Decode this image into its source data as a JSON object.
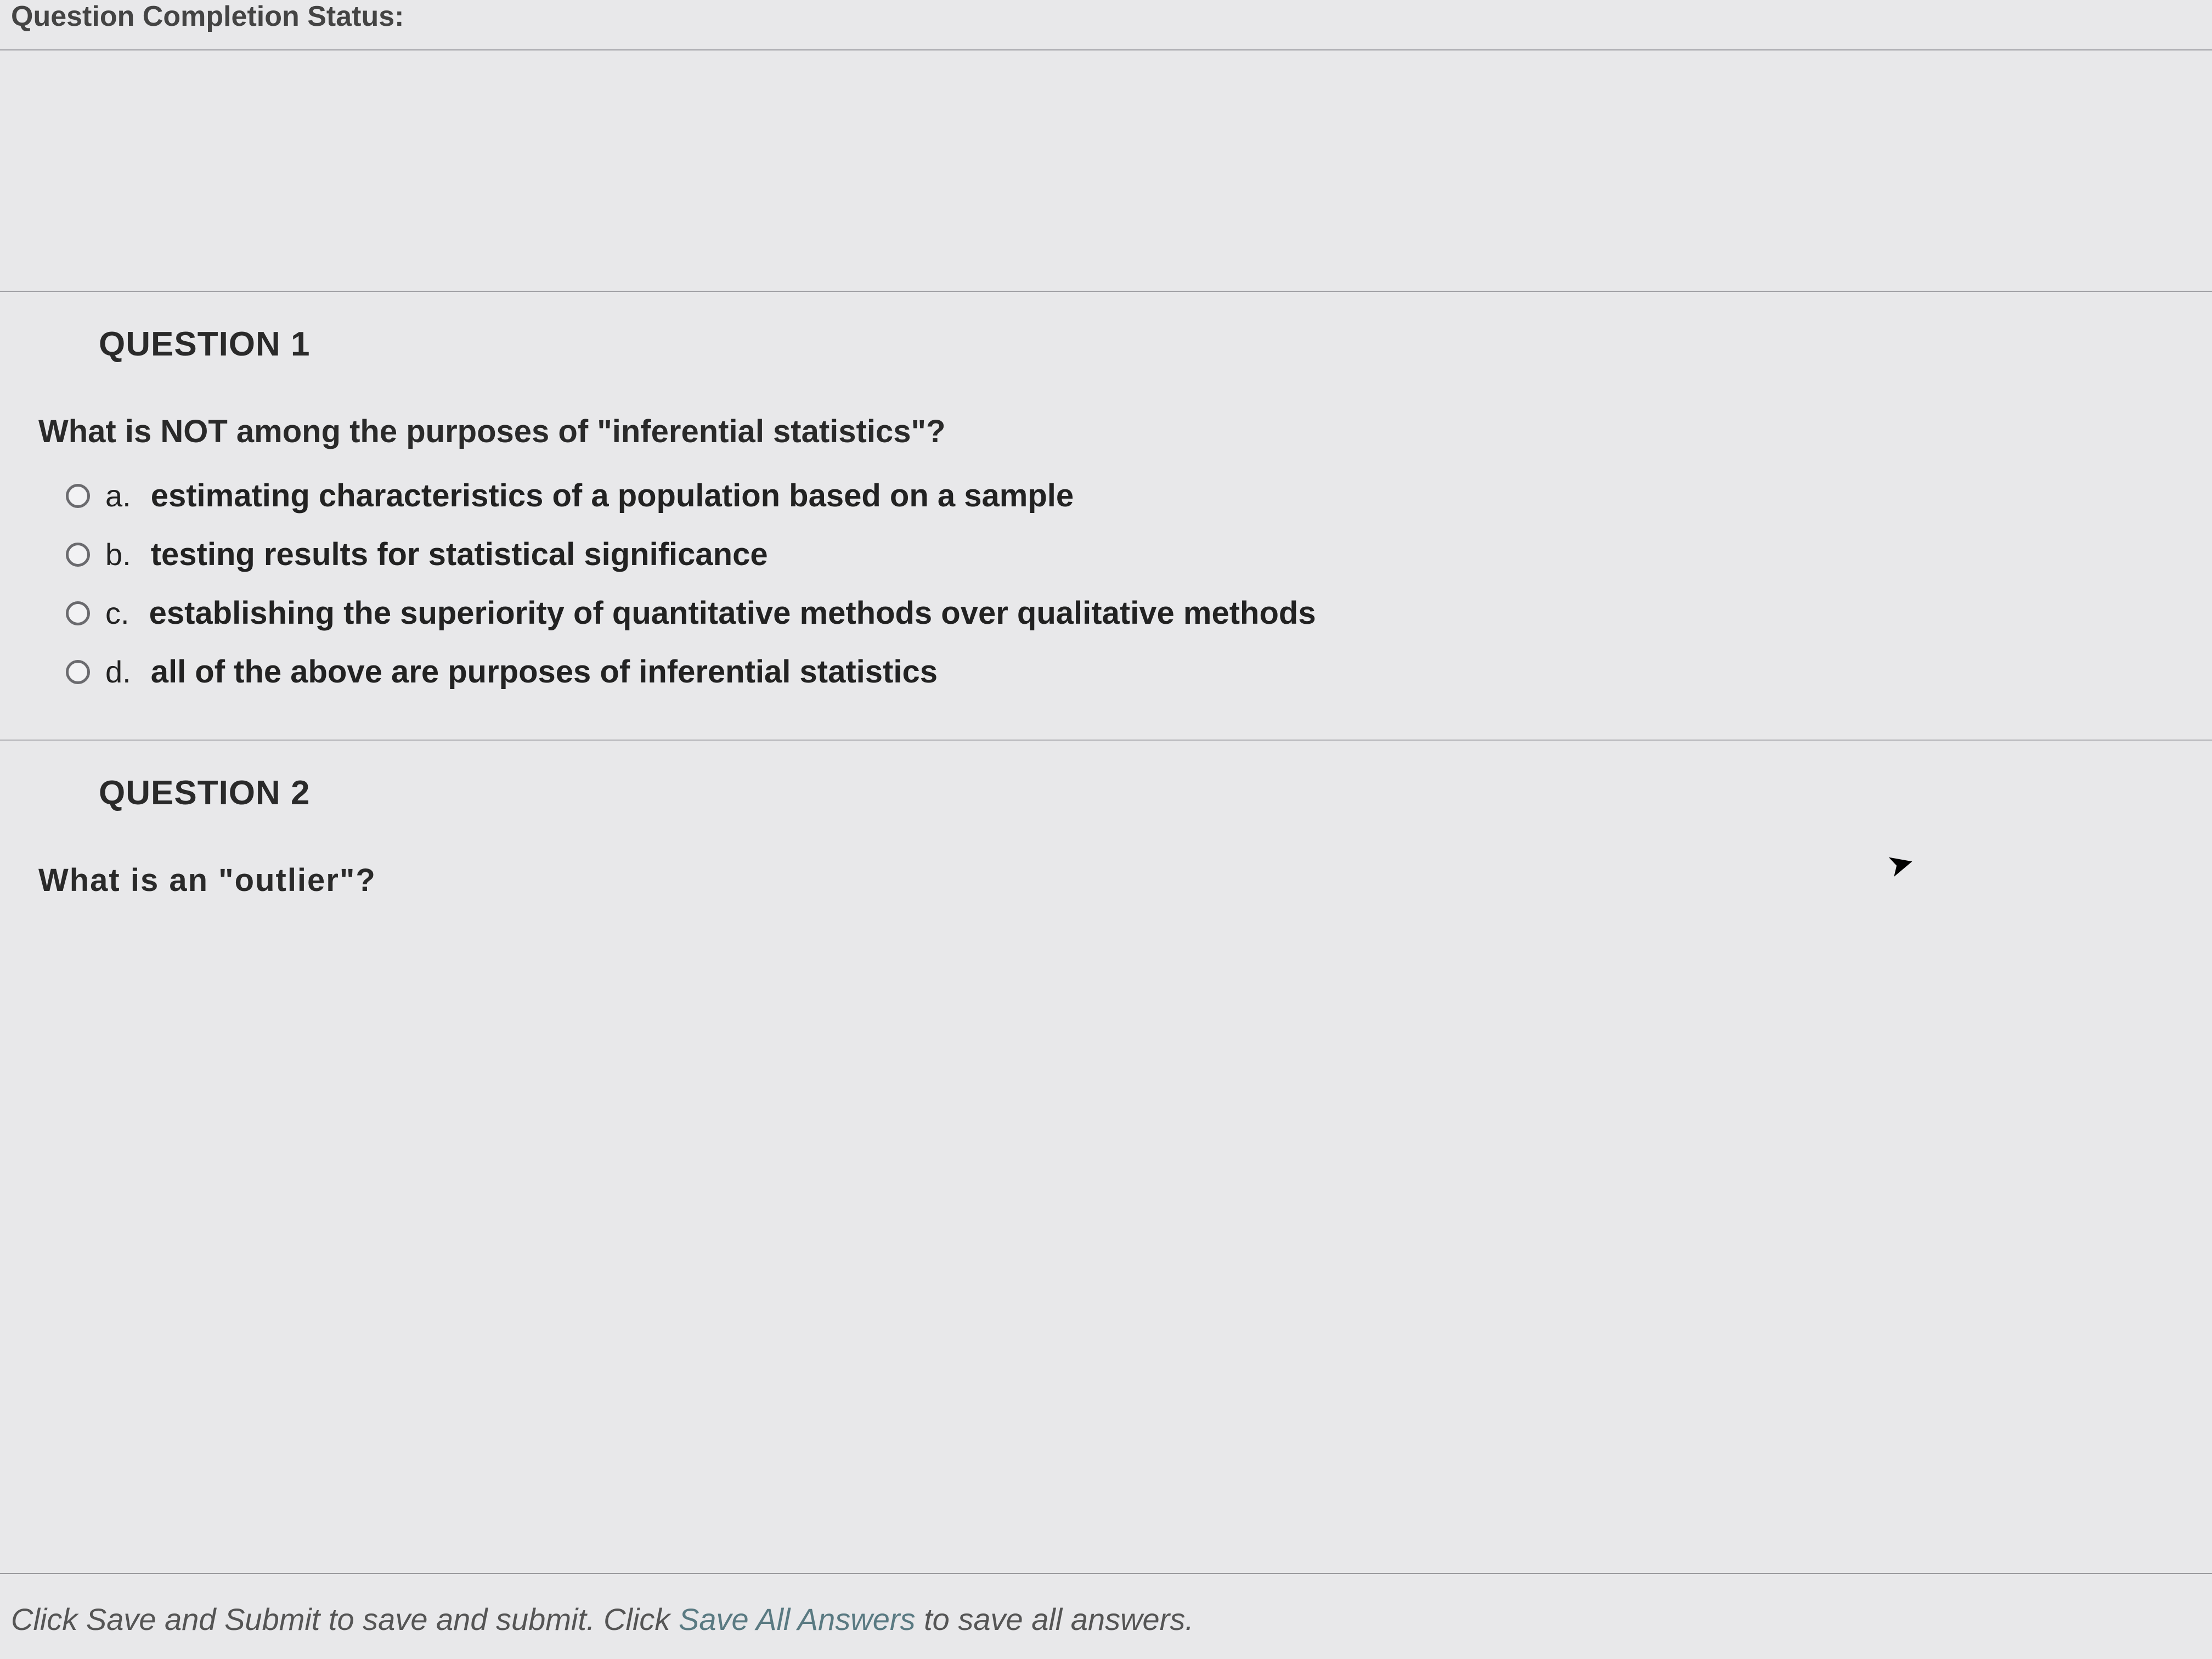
{
  "header": {
    "status_label": "Question Completion Status:"
  },
  "question1": {
    "title": "QUESTION 1",
    "prompt": "What is NOT among the purposes of \"inferential statistics\"?",
    "options": [
      {
        "letter": "a.",
        "text": "estimating characteristics of a population based on a sample"
      },
      {
        "letter": "b.",
        "text": "testing results for statistical significance"
      },
      {
        "letter": "c.",
        "text": "establishing the superiority of quantitative methods over qualitative methods"
      },
      {
        "letter": "d.",
        "text": "all of the above are purposes of inferential statistics"
      }
    ]
  },
  "question2": {
    "title": "QUESTION 2",
    "prompt_partial": "What is an \"outlier\"?"
  },
  "footer": {
    "text_a": "Click Save and Submit to save and submit. Click ",
    "text_b": "Save All Answers",
    "text_c": " to save all answers."
  },
  "colors": {
    "background": "#e8e8ea",
    "text": "#222222",
    "border": "#a0a0a5",
    "radio_border": "#6a6a6e",
    "footer_accent": "#5a7a82"
  }
}
